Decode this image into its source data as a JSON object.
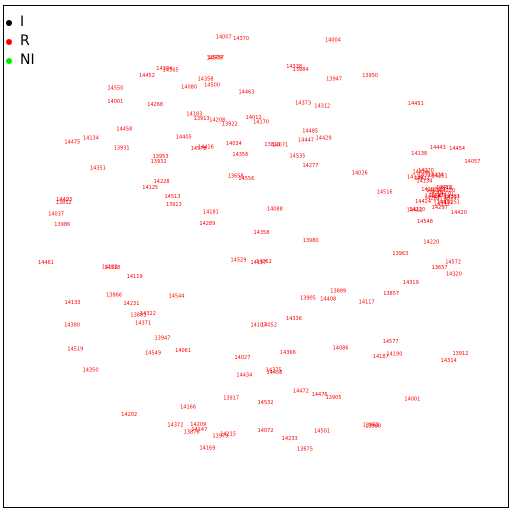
{
  "chart_data": {
    "type": "scatter",
    "title": "",
    "xlabel": "",
    "ylabel": "",
    "grid": false,
    "legend_placement": "top-left",
    "legend": [
      {
        "label": "I",
        "color": "#000000"
      },
      {
        "label": "R",
        "color": "#ff0000"
      },
      {
        "label": "NI",
        "color": "#00ee00"
      }
    ],
    "series": [
      {
        "name": "R",
        "color": "#ff0000",
        "points": [
          {
            "x": 0.0,
            "y": 0.0,
            "label": "14578"
          },
          {
            "x": 0.0,
            "y": 0.0,
            "label": "14550"
          },
          {
            "x": 0.0,
            "y": 0.0,
            "label": "14080"
          },
          {
            "x": 0.0,
            "y": 0.0,
            "label": "13863"
          },
          {
            "x": 0.0,
            "y": 0.0,
            "label": "14579"
          },
          {
            "x": 0.0,
            "y": 0.0,
            "label": "14170"
          },
          {
            "x": 0.0,
            "y": 0.0,
            "label": "14535"
          },
          {
            "x": 0.0,
            "y": 0.0,
            "label": "14513"
          },
          {
            "x": 0.0,
            "y": 0.0,
            "label": "14501"
          },
          {
            "x": 0.0,
            "y": 0.0,
            "label": "14451"
          },
          {
            "x": 0.0,
            "y": 0.0,
            "label": "14577"
          },
          {
            "x": 0.0,
            "y": 0.0,
            "label": "14012"
          },
          {
            "x": 0.0,
            "y": 0.0,
            "label": "14434"
          },
          {
            "x": 0.0,
            "y": 0.0,
            "label": "14454"
          },
          {
            "x": 0.0,
            "y": 0.0,
            "label": "13883"
          },
          {
            "x": 0.0,
            "y": 0.0,
            "label": "14277"
          },
          {
            "x": 0.0,
            "y": 0.0,
            "label": "14086"
          },
          {
            "x": 0.0,
            "y": 0.0,
            "label": "14549"
          },
          {
            "x": 0.0,
            "y": 0.0,
            "label": "14548"
          },
          {
            "x": 0.0,
            "y": 0.0,
            "label": "13810"
          },
          {
            "x": 0.0,
            "y": 0.0,
            "label": "14380"
          },
          {
            "x": 0.0,
            "y": 0.0,
            "label": "14429"
          },
          {
            "x": 0.0,
            "y": 0.0,
            "label": "13852"
          },
          {
            "x": 0.0,
            "y": 0.0,
            "label": "14556"
          },
          {
            "x": 0.0,
            "y": 0.0,
            "label": "14181"
          },
          {
            "x": 0.0,
            "y": 0.0,
            "label": "14208"
          },
          {
            "x": 0.0,
            "y": 0.0,
            "label": "14034"
          },
          {
            "x": 0.0,
            "y": 0.0,
            "label": "13947"
          },
          {
            "x": 0.0,
            "y": 0.0,
            "label": "14519"
          },
          {
            "x": 0.0,
            "y": 0.0,
            "label": "14529"
          },
          {
            "x": 0.0,
            "y": 0.0,
            "label": "14052"
          },
          {
            "x": 0.0,
            "y": 0.0,
            "label": "14358"
          },
          {
            "x": 0.0,
            "y": 0.0,
            "label": "14027"
          },
          {
            "x": 0.0,
            "y": 0.0,
            "label": "14544"
          },
          {
            "x": 0.0,
            "y": 0.0,
            "label": "14312"
          },
          {
            "x": 0.0,
            "y": 0.0,
            "label": "14493"
          },
          {
            "x": 0.0,
            "y": 0.0,
            "label": "14458"
          },
          {
            "x": 0.0,
            "y": 0.0,
            "label": "13657"
          },
          {
            "x": 0.0,
            "y": 0.0,
            "label": "13866"
          },
          {
            "x": 0.0,
            "y": 0.0,
            "label": "14416"
          },
          {
            "x": 0.0,
            "y": 0.0,
            "label": "14461"
          },
          {
            "x": 0.0,
            "y": 0.0,
            "label": "14476"
          },
          {
            "x": 0.0,
            "y": 0.0,
            "label": "14138"
          },
          {
            "x": 0.0,
            "y": 0.0,
            "label": "14572"
          },
          {
            "x": 0.0,
            "y": 0.0,
            "label": "14405"
          },
          {
            "x": 0.0,
            "y": 0.0,
            "label": "13947"
          },
          {
            "x": 0.0,
            "y": 0.0,
            "label": "14215"
          },
          {
            "x": 0.0,
            "y": 0.0,
            "label": "14220"
          },
          {
            "x": 0.0,
            "y": 0.0,
            "label": "13905"
          },
          {
            "x": 0.0,
            "y": 0.0,
            "label": "14365"
          },
          {
            "x": 0.0,
            "y": 0.0,
            "label": "14351"
          },
          {
            "x": 0.0,
            "y": 0.0,
            "label": "13912"
          },
          {
            "x": 0.0,
            "y": 0.0,
            "label": "14117"
          },
          {
            "x": 0.0,
            "y": 0.0,
            "label": "14133"
          },
          {
            "x": 0.0,
            "y": 0.0,
            "label": "13876"
          },
          {
            "x": 0.0,
            "y": 0.0,
            "label": "14233"
          },
          {
            "x": 0.0,
            "y": 0.0,
            "label": "14371"
          },
          {
            "x": 0.0,
            "y": 0.0,
            "label": "13963"
          },
          {
            "x": 0.0,
            "y": 0.0,
            "label": "13937"
          },
          {
            "x": 0.0,
            "y": 0.0,
            "label": "14004"
          },
          {
            "x": 0.0,
            "y": 0.0,
            "label": "14134"
          },
          {
            "x": 0.0,
            "y": 0.0,
            "label": "14262"
          },
          {
            "x": 0.0,
            "y": 0.0,
            "label": "14532"
          },
          {
            "x": 0.0,
            "y": 0.0,
            "label": "14268"
          },
          {
            "x": 0.0,
            "y": 0.0,
            "label": "14183"
          },
          {
            "x": 0.0,
            "y": 0.0,
            "label": "14452"
          },
          {
            "x": 0.0,
            "y": 0.0,
            "label": "13658"
          },
          {
            "x": 0.0,
            "y": 0.0,
            "label": "13913"
          },
          {
            "x": 0.0,
            "y": 0.0,
            "label": "13913"
          },
          {
            "x": 0.0,
            "y": 0.0,
            "label": "14166"
          },
          {
            "x": 0.0,
            "y": 0.0,
            "label": "14061"
          },
          {
            "x": 0.0,
            "y": 0.0,
            "label": "14375"
          },
          {
            "x": 0.0,
            "y": 0.0,
            "label": "14190"
          },
          {
            "x": 0.0,
            "y": 0.0,
            "label": "14420"
          },
          {
            "x": 0.0,
            "y": 0.0,
            "label": "13986"
          },
          {
            "x": 0.0,
            "y": 0.0,
            "label": "14485"
          },
          {
            "x": 0.0,
            "y": 0.0,
            "label": "14518"
          },
          {
            "x": 0.0,
            "y": 0.0,
            "label": "14001"
          },
          {
            "x": 0.0,
            "y": 0.0,
            "label": "14127"
          },
          {
            "x": 0.0,
            "y": 0.0,
            "label": "13932"
          },
          {
            "x": 0.0,
            "y": 0.0,
            "label": "13889"
          },
          {
            "x": 0.0,
            "y": 0.0,
            "label": "14408"
          },
          {
            "x": 0.0,
            "y": 0.0,
            "label": "14338"
          },
          {
            "x": 0.0,
            "y": 0.0,
            "label": "13922"
          },
          {
            "x": 0.0,
            "y": 0.0,
            "label": "14472"
          },
          {
            "x": 0.0,
            "y": 0.0,
            "label": "14516"
          },
          {
            "x": 0.0,
            "y": 0.0,
            "label": "14314"
          },
          {
            "x": 0.0,
            "y": 0.0,
            "label": "14202"
          },
          {
            "x": 0.0,
            "y": 0.0,
            "label": "14366"
          },
          {
            "x": 0.0,
            "y": 0.0,
            "label": "14475"
          },
          {
            "x": 0.0,
            "y": 0.0,
            "label": "14072"
          },
          {
            "x": 0.0,
            "y": 0.0,
            "label": "14147"
          },
          {
            "x": 0.0,
            "y": 0.0,
            "label": "13917"
          },
          {
            "x": 0.0,
            "y": 0.0,
            "label": "14463"
          },
          {
            "x": 0.0,
            "y": 0.0,
            "label": "14358"
          },
          {
            "x": 0.0,
            "y": 0.0,
            "label": "14107"
          },
          {
            "x": 0.0,
            "y": 0.0,
            "label": "14088"
          },
          {
            "x": 0.0,
            "y": 0.0,
            "label": "14187"
          },
          {
            "x": 0.0,
            "y": 0.0,
            "label": "14119"
          },
          {
            "x": 0.0,
            "y": 0.0,
            "label": "14500"
          },
          {
            "x": 0.0,
            "y": 0.0,
            "label": "14125"
          },
          {
            "x": 0.0,
            "y": 0.0,
            "label": "14231"
          },
          {
            "x": 0.0,
            "y": 0.0,
            "label": "14228"
          },
          {
            "x": 0.0,
            "y": 0.0,
            "label": "14057"
          },
          {
            "x": 0.0,
            "y": 0.0,
            "label": "13953"
          },
          {
            "x": 0.0,
            "y": 0.0,
            "label": "14026"
          },
          {
            "x": 0.0,
            "y": 0.0,
            "label": "14319"
          },
          {
            "x": 0.0,
            "y": 0.0,
            "label": "14350"
          },
          {
            "x": 0.0,
            "y": 0.0,
            "label": "13980"
          },
          {
            "x": 0.0,
            "y": 0.0,
            "label": "14322"
          },
          {
            "x": 0.0,
            "y": 0.0,
            "label": "13988"
          },
          {
            "x": 0.0,
            "y": 0.0,
            "label": "14169"
          },
          {
            "x": 0.0,
            "y": 0.0,
            "label": "14007"
          },
          {
            "x": 0.0,
            "y": 0.0,
            "label": "14373"
          },
          {
            "x": 0.0,
            "y": 0.0,
            "label": "14304"
          },
          {
            "x": 0.0,
            "y": 0.0,
            "label": "14209"
          },
          {
            "x": 0.0,
            "y": 0.0,
            "label": "13931"
          },
          {
            "x": 0.0,
            "y": 0.0,
            "label": "14289"
          },
          {
            "x": 0.0,
            "y": 0.0,
            "label": "14443"
          },
          {
            "x": 0.0,
            "y": 0.0,
            "label": "14320"
          },
          {
            "x": 0.0,
            "y": 0.0,
            "label": "13979"
          },
          {
            "x": 0.0,
            "y": 0.0,
            "label": "14370"
          },
          {
            "x": 0.0,
            "y": 0.0,
            "label": "14037"
          },
          {
            "x": 0.0,
            "y": 0.0,
            "label": "14336"
          },
          {
            "x": 0.0,
            "y": 0.0,
            "label": "13675"
          },
          {
            "x": 0.0,
            "y": 0.0,
            "label": "14447"
          },
          {
            "x": 0.0,
            "y": 0.0,
            "label": "14372"
          },
          {
            "x": 0.0,
            "y": 0.0,
            "label": "13984"
          },
          {
            "x": 0.0,
            "y": 0.0,
            "label": "14356"
          },
          {
            "x": 0.0,
            "y": 0.0,
            "label": "13950"
          },
          {
            "x": 0.0,
            "y": 0.0,
            "label": "14071"
          },
          {
            "x": 0.0,
            "y": 0.0,
            "label": "13905"
          },
          {
            "x": 0.0,
            "y": 0.0,
            "label": "14458"
          },
          {
            "x": 0.0,
            "y": 0.0,
            "label": "14103"
          },
          {
            "x": 0.0,
            "y": 0.0,
            "label": "13857"
          },
          {
            "x": 0.0,
            "y": 0.0,
            "label": "14001"
          }
        ]
      }
    ]
  }
}
